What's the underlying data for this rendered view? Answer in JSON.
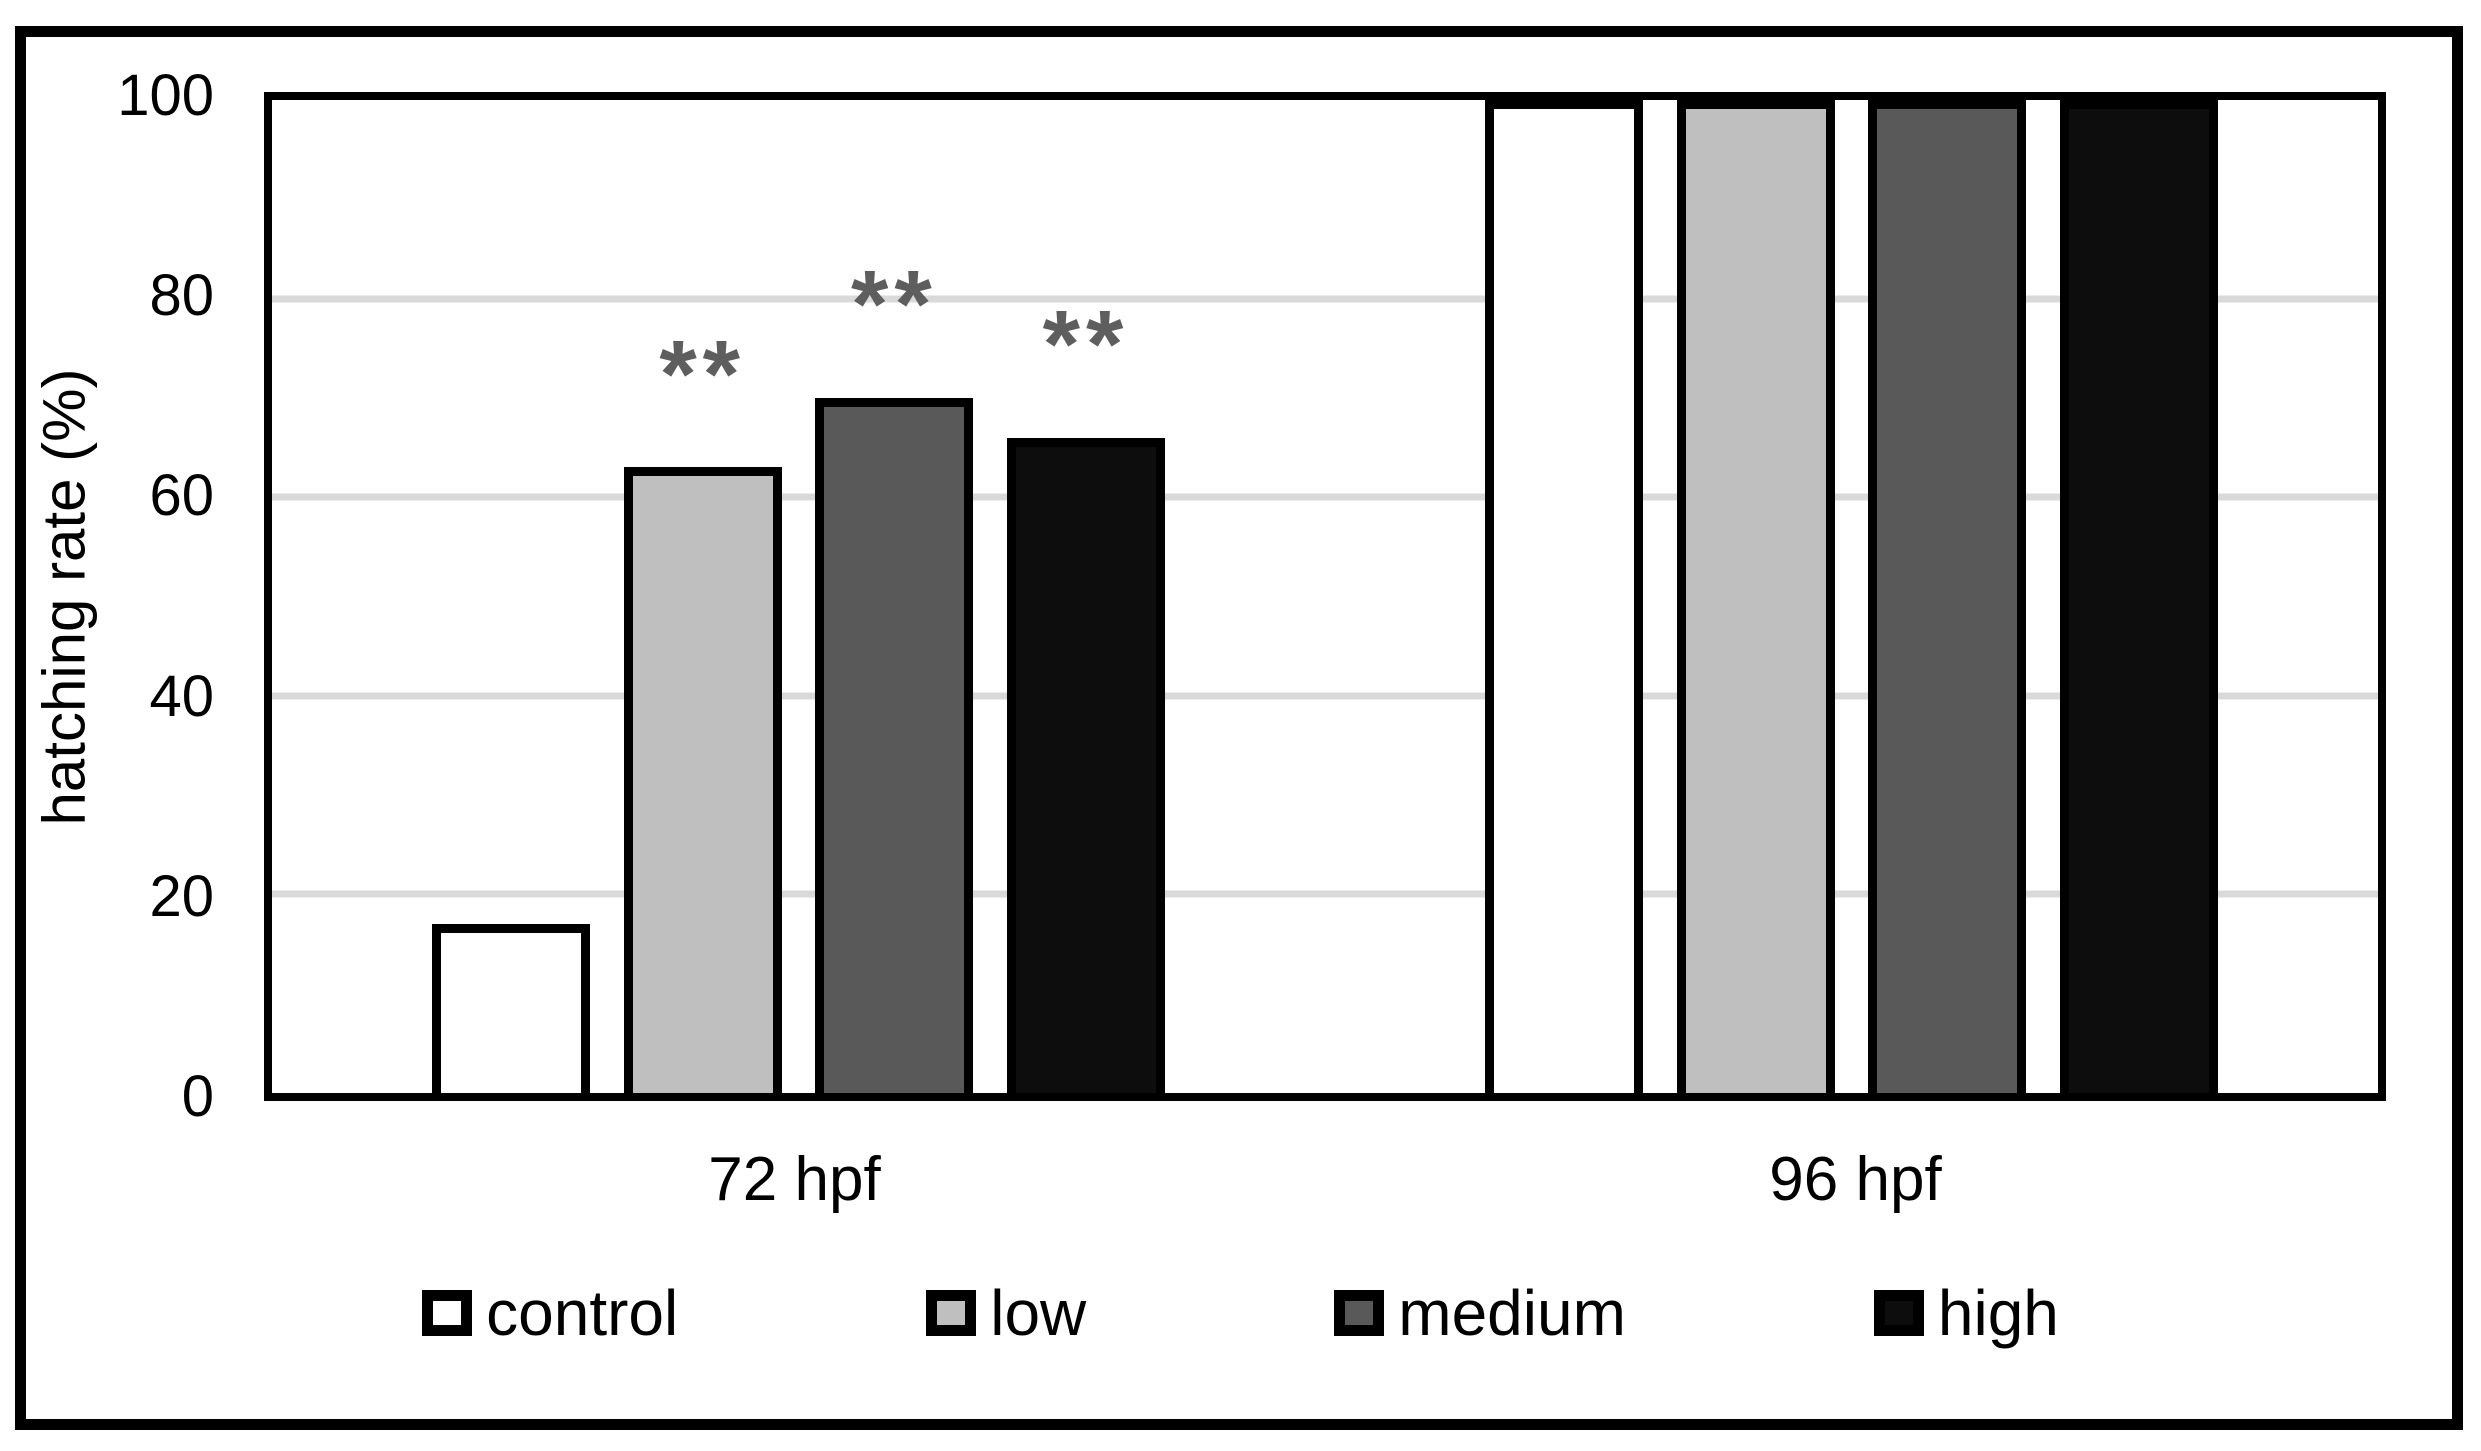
{
  "chart_data": {
    "type": "bar",
    "title": "",
    "xlabel": "",
    "ylabel": "hatching rate (%)",
    "categories": [
      "72 hpf",
      "96 hpf"
    ],
    "series": [
      {
        "name": "control",
        "fill": "#ffffff",
        "values": [
          17,
          100
        ],
        "annotations": [
          "",
          ""
        ]
      },
      {
        "name": "low",
        "fill": "#bfbfbf",
        "values": [
          63,
          100
        ],
        "annotations": [
          "**",
          ""
        ]
      },
      {
        "name": "medium",
        "fill": "#595959",
        "values": [
          70,
          100
        ],
        "annotations": [
          "**",
          ""
        ]
      },
      {
        "name": "high",
        "fill": "#0d0d0d",
        "values": [
          66,
          100
        ],
        "annotations": [
          "**",
          ""
        ]
      }
    ],
    "ylim": [
      0,
      100
    ],
    "yticks": [
      0,
      20,
      40,
      60,
      80,
      100
    ],
    "grid": true,
    "gridline_color": "#d9d9d9",
    "annotation_color": "#5e5e5e",
    "axis_color": "#000000",
    "legend_position": "bottom",
    "legend_labels": [
      "control",
      "low",
      "medium",
      "high"
    ]
  }
}
